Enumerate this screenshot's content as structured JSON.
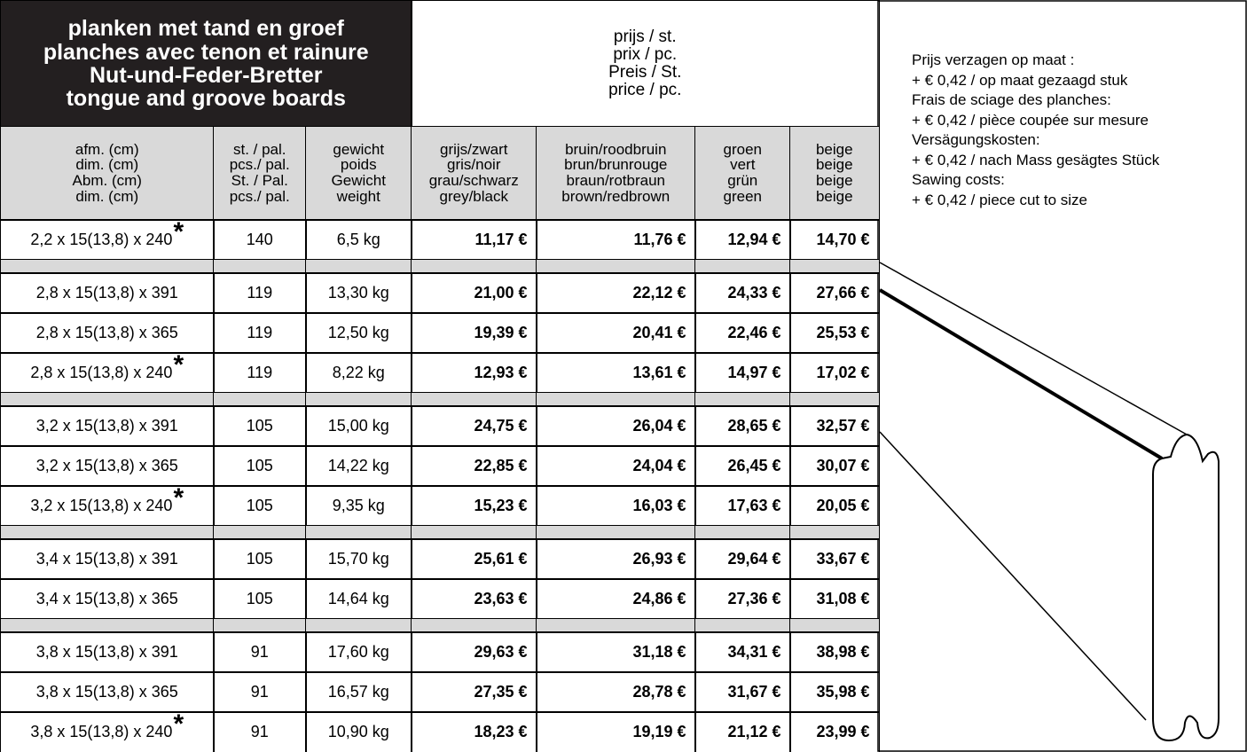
{
  "table": {
    "title": [
      "planken met tand en groef",
      "planches avec tenon et rainure",
      "Nut-und-Feder-Bretter",
      "tongue and groove boards"
    ],
    "price_header": [
      "prijs / st.",
      "prix / pc.",
      "Preis / St.",
      "price / pc."
    ],
    "columns": [
      [
        "afm. (cm)",
        "dim. (cm)",
        "Abm. (cm)",
        "dim. (cm)"
      ],
      [
        "st. / pal.",
        "pcs./ pal.",
        "St. / Pal.",
        "pcs./ pal."
      ],
      [
        "gewicht",
        "poids",
        "Gewicht",
        "weight"
      ],
      [
        "grijs/zwart",
        "gris/noir",
        "grau/schwarz",
        "grey/black"
      ],
      [
        "bruin/roodbruin",
        "brun/brunrouge",
        "braun/rotbraun",
        "brown/redbrown"
      ],
      [
        "groen",
        "vert",
        "grün",
        "green"
      ],
      [
        "beige",
        "beige",
        "beige",
        "beige"
      ]
    ],
    "groups": [
      [
        {
          "cells": [
            "2,2 x 15(13,8) x 240",
            "140",
            "6,5 kg",
            "11,17 €",
            "11,76 €",
            "12,94 €",
            "14,70 €"
          ],
          "note": "*"
        }
      ],
      [
        {
          "cells": [
            "2,8 x 15(13,8) x 391",
            "119",
            "13,30 kg",
            "21,00 €",
            "22,12 €",
            "24,33 €",
            "27,66 €"
          ]
        },
        {
          "cells": [
            "2,8 x 15(13,8) x 365",
            "119",
            "12,50 kg",
            "19,39 €",
            "20,41 €",
            "22,46 €",
            "25,53 €"
          ]
        },
        {
          "cells": [
            "2,8 x 15(13,8) x 240",
            "119",
            "8,22 kg",
            "12,93 €",
            "13,61 €",
            "14,97 €",
            "17,02 €"
          ],
          "note": "*"
        }
      ],
      [
        {
          "cells": [
            "3,2 x 15(13,8) x 391",
            "105",
            "15,00 kg",
            "24,75 €",
            "26,04 €",
            "28,65 €",
            "32,57 €"
          ]
        },
        {
          "cells": [
            "3,2 x 15(13,8) x 365",
            "105",
            "14,22 kg",
            "22,85 €",
            "24,04 €",
            "26,45 €",
            "30,07 €"
          ]
        },
        {
          "cells": [
            "3,2 x 15(13,8) x 240",
            "105",
            "9,35 kg",
            "15,23 €",
            "16,03 €",
            "17,63 €",
            "20,05 €"
          ],
          "note": "*"
        }
      ],
      [
        {
          "cells": [
            "3,4 x 15(13,8) x 391",
            "105",
            "15,70 kg",
            "25,61 €",
            "26,93 €",
            "29,64 €",
            "33,67 €"
          ]
        },
        {
          "cells": [
            "3,4 x 15(13,8) x 365",
            "105",
            "14,64 kg",
            "23,63 €",
            "24,86 €",
            "27,36 €",
            "31,08 €"
          ]
        }
      ],
      [
        {
          "cells": [
            "3,8 x 15(13,8) x 391",
            "91",
            "17,60 kg",
            "29,63 €",
            "31,18 €",
            "34,31 €",
            "38,98 €"
          ]
        },
        {
          "cells": [
            "3,8 x 15(13,8) x 365",
            "91",
            "16,57 kg",
            "27,35 €",
            "28,78 €",
            "31,67 €",
            "35,98 €"
          ]
        },
        {
          "cells": [
            "3,8 x 15(13,8) x 240",
            "91",
            "10,90 kg",
            "18,23 €",
            "19,19 €",
            "21,12 €",
            "23,99 €"
          ],
          "note": "*"
        }
      ]
    ]
  },
  "notes": [
    "Prijs verzagen op maat :",
    "+ € 0,42 / op maat gezaagd stuk",
    "Frais de sciage des planches:",
    "+ € 0,42 / pièce coupée sur mesure",
    "Versägungskosten:",
    "+ € 0,42 / nach Mass gesägtes Stück",
    "Sawing costs:",
    "+ € 0,42 / piece cut to size"
  ]
}
